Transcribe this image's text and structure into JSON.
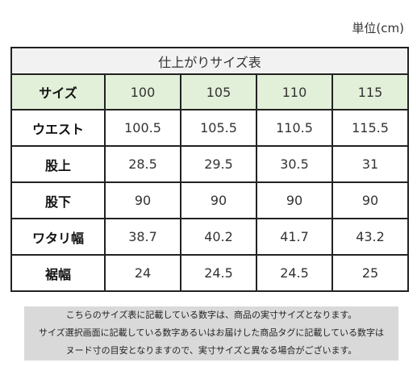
{
  "unit_label": "単位(cm)",
  "table": {
    "caption": "仕上がりサイズ表",
    "header": {
      "label": "サイズ",
      "sizes": [
        "100",
        "105",
        "110",
        "115"
      ]
    },
    "rows": [
      {
        "label": "ウエスト",
        "values": [
          "100.5",
          "105.5",
          "110.5",
          "115.5"
        ]
      },
      {
        "label": "股上",
        "values": [
          "28.5",
          "29.5",
          "30.5",
          "31"
        ]
      },
      {
        "label": "股下",
        "values": [
          "90",
          "90",
          "90",
          "90"
        ]
      },
      {
        "label": "ワタリ幅",
        "values": [
          "38.7",
          "40.2",
          "41.7",
          "43.2"
        ]
      },
      {
        "label": "裾幅",
        "values": [
          "24",
          "24.5",
          "24.5",
          "25"
        ]
      }
    ]
  },
  "note": {
    "lines": [
      "こちらのサイズ表に記載している数字は、商品の実寸サイズとなります。",
      "サイズ選択画面に記載している数字あるいはお届けした商品タグに記載している数字は",
      "ヌード寸の目安となりますので、実寸サイズと異なる場合がございます。"
    ]
  },
  "colors": {
    "header_background": "#e2efd9",
    "caption_background": "#f2f2f2",
    "note_background": "#d9d9d9",
    "border": "#222222"
  }
}
